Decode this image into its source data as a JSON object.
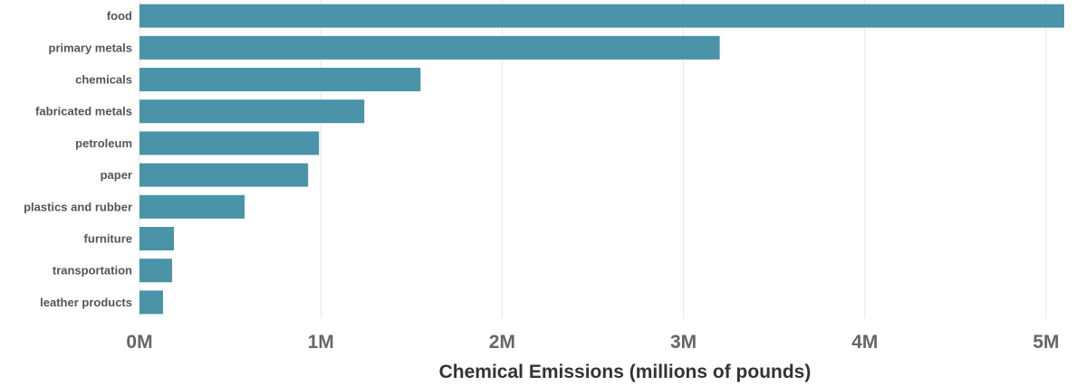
{
  "chart_data": {
    "type": "bar",
    "orientation": "horizontal",
    "title": "",
    "xlabel": "Chemical Emissions (millions of pounds)",
    "ylabel": "",
    "categories": [
      "food",
      "primary metals",
      "chemicals",
      "fabricated metals",
      "petroleum",
      "paper",
      "plastics and rubber",
      "furniture",
      "transportation",
      "leather products"
    ],
    "values": [
      5.1,
      3.2,
      1.55,
      1.24,
      0.99,
      0.93,
      0.58,
      0.19,
      0.18,
      0.13
    ],
    "xlim": [
      0,
      5.1
    ],
    "x_ticks": [
      0,
      1,
      2,
      3,
      4,
      5
    ],
    "x_tick_labels": [
      "0M",
      "1M",
      "2M",
      "3M",
      "4M",
      "5M"
    ],
    "bar_color": "#4a93a9",
    "grid": "vertical"
  }
}
